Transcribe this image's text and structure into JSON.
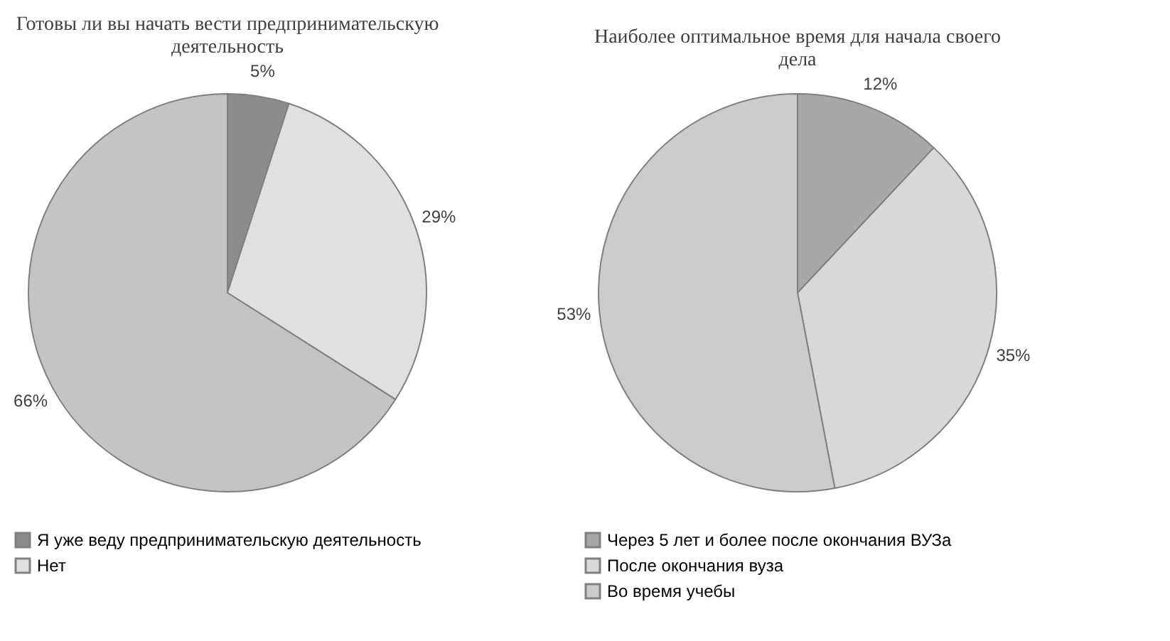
{
  "chart_data": [
    {
      "type": "pie",
      "title": "Готовы ли вы начать вести предпринимательскую деятельность",
      "categories": [
        "Я уже веду предпринимательскую деятельность",
        "Нет",
        null
      ],
      "values": [
        5,
        29,
        66
      ],
      "value_labels": [
        "5%",
        "29%",
        "66%"
      ],
      "colors": [
        "#8c8c8c",
        "#e0e0e0",
        "#c4c4c4"
      ],
      "legend": "bottom"
    },
    {
      "type": "pie",
      "title": "Наиболее оптимальное время для начала своего дела",
      "categories": [
        "Через 5 лет и более после окончания ВУЗа",
        "После окончания вуза",
        "Во время учебы"
      ],
      "values": [
        12,
        35,
        53
      ],
      "value_labels": [
        "12%",
        "35%",
        "53%"
      ],
      "colors": [
        "#a8a8a8",
        "#d8d8d8",
        "#cccccc"
      ],
      "legend": "bottom"
    }
  ]
}
